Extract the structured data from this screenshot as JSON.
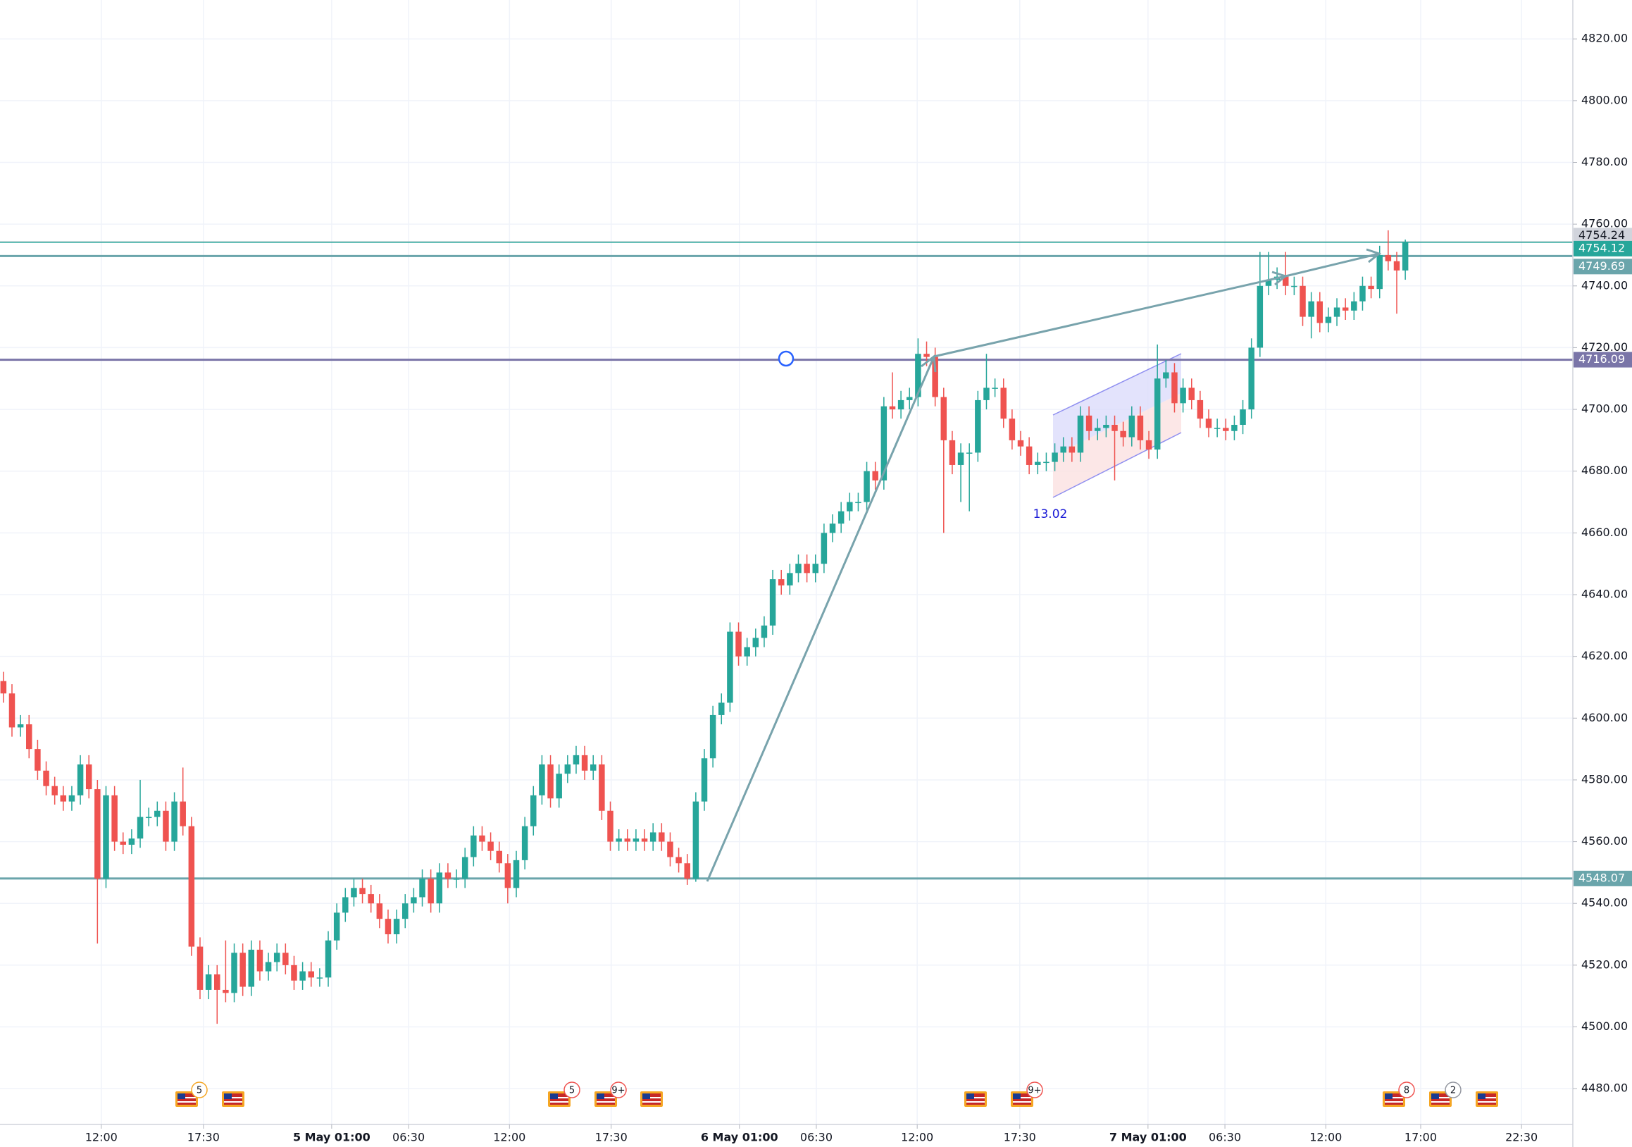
{
  "chart_data": {
    "type": "candlestick",
    "up_color": "#26a69a",
    "down_color": "#ef5350",
    "grid": true,
    "xlim": [
      -0.4,
      183.6
    ],
    "ylim": [
      4468.4,
      4832.6
    ],
    "xticks": [
      {
        "value": 11.45,
        "label": "12:00"
      },
      {
        "value": 23.4,
        "label": "17:30"
      },
      {
        "value": 38.4,
        "label": "5 May 01:00"
      },
      {
        "value": 47.4,
        "label": "06:30"
      },
      {
        "value": 59.2,
        "label": "12:00"
      },
      {
        "value": 71.1,
        "label": "17:30"
      },
      {
        "value": 86.1,
        "label": "6 May 01:00"
      },
      {
        "value": 95.1,
        "label": "06:30"
      },
      {
        "value": 106.9,
        "label": "12:00"
      },
      {
        "value": 118.9,
        "label": "17:30"
      },
      {
        "value": 133.9,
        "label": "7 May 01:00"
      },
      {
        "value": 142.9,
        "label": "06:30"
      },
      {
        "value": 154.7,
        "label": "12:00"
      },
      {
        "value": 165.8,
        "label": "17:00"
      },
      {
        "value": 177.6,
        "label": "22:30"
      }
    ],
    "yticks": [
      {
        "value": 4480,
        "label": "4480.00"
      },
      {
        "value": 4500,
        "label": "4500.00"
      },
      {
        "value": 4520,
        "label": "4520.00"
      },
      {
        "value": 4540,
        "label": "4540.00"
      },
      {
        "value": 4560,
        "label": "4560.00"
      },
      {
        "value": 4580,
        "label": "4580.00"
      },
      {
        "value": 4600,
        "label": "4600.00"
      },
      {
        "value": 4620,
        "label": "4620.00"
      },
      {
        "value": 4640,
        "label": "4640.00"
      },
      {
        "value": 4660,
        "label": "4660.00"
      },
      {
        "value": 4680,
        "label": "4680.00"
      },
      {
        "value": 4700,
        "label": "4700.00"
      },
      {
        "value": 4720,
        "label": "4720.00"
      },
      {
        "value": 4740,
        "label": "4740.00"
      },
      {
        "value": 4760,
        "label": "4760.00"
      },
      {
        "value": 4780,
        "label": "4780.00"
      },
      {
        "value": 4800,
        "label": "4800.00"
      },
      {
        "value": 4820,
        "label": "4820.00"
      }
    ],
    "open": [
      4612,
      4608,
      4597,
      4598,
      4590,
      4583,
      4578,
      4575,
      4573,
      4575,
      4585,
      4577,
      4548,
      4575,
      4560,
      4559,
      4561,
      4568,
      4568,
      4570,
      4560,
      4573,
      4565,
      4526,
      4512,
      4517,
      4512,
      4511,
      4524,
      4513,
      4525,
      4518,
      4521,
      4524,
      4520,
      4515,
      4518,
      4516,
      4516,
      4528,
      4537,
      4542,
      4545,
      4543,
      4540,
      4535,
      4530,
      4535,
      4540,
      4542,
      4548,
      4540,
      4550,
      4548,
      4548,
      4555,
      4562,
      4560,
      4557,
      4553,
      4545,
      4554,
      4565,
      4575,
      4585,
      4574,
      4582,
      4585,
      4588,
      4583,
      4585,
      4570,
      4560,
      4561,
      4560,
      4561,
      4560,
      4563,
      4560,
      4555,
      4553,
      4548,
      4573,
      4587,
      4601,
      4605,
      4628,
      4620,
      4623,
      4626,
      4630,
      4645,
      4643,
      4647,
      4650,
      4647,
      4650,
      4660,
      4663,
      4667,
      4670,
      4670,
      4680,
      4677,
      4701,
      4700,
      4703,
      4704,
      4718,
      4717,
      4704,
      4690,
      4682,
      4686,
      4686,
      4703,
      4707,
      4707,
      4697,
      4690,
      4688,
      4682,
      4683,
      4683,
      4686,
      4688,
      4686,
      4698,
      4693,
      4694,
      4695,
      4693,
      4691,
      4698,
      4690,
      4687,
      4710,
      4712,
      4702,
      4707,
      4703,
      4697,
      4694,
      4694,
      4693,
      4695,
      4700,
      4720,
      4740,
      4742,
      4743,
      4740,
      4740,
      4730,
      4735,
      4728,
      4730,
      4733,
      4732,
      4735,
      4740,
      4739,
      4750,
      4748,
      4745
    ],
    "high": [
      4615,
      4611,
      4601,
      4601,
      4593,
      4586,
      4581,
      4578,
      4578,
      4588,
      4588,
      4580,
      4578,
      4578,
      4563,
      4564,
      4580,
      4571,
      4573,
      4573,
      4576,
      4584,
      4568,
      4529,
      4520,
      4520,
      4528,
      4527,
      4527,
      4528,
      4528,
      4524,
      4527,
      4527,
      4523,
      4521,
      4521,
      4519,
      4531,
      4540,
      4545,
      4548,
      4548,
      4546,
      4543,
      4538,
      4538,
      4543,
      4545,
      4551,
      4551,
      4553,
      4553,
      4551,
      4558,
      4565,
      4565,
      4563,
      4560,
      4556,
      4557,
      4568,
      4578,
      4588,
      4588,
      4585,
      4588,
      4591,
      4591,
      4588,
      4588,
      4573,
      4564,
      4564,
      4564,
      4564,
      4566,
      4566,
      4563,
      4558,
      4556,
      4576,
      4590,
      4604,
      4608,
      4631,
      4631,
      4626,
      4629,
      4633,
      4648,
      4648,
      4650,
      4653,
      4653,
      4653,
      4663,
      4666,
      4670,
      4673,
      4673,
      4683,
      4683,
      4704,
      4712,
      4706,
      4707,
      4723,
      4722,
      4720,
      4707,
      4693,
      4689,
      4689,
      4706,
      4718,
      4710,
      4710,
      4700,
      4693,
      4691,
      4686,
      4686,
      4689,
      4691,
      4691,
      4701,
      4701,
      4697,
      4698,
      4698,
      4696,
      4701,
      4701,
      4693,
      4721,
      4716,
      4715,
      4710,
      4710,
      4706,
      4700,
      4697,
      4697,
      4698,
      4703,
      4723,
      4751,
      4751,
      4746,
      4751,
      4743,
      4743,
      4738,
      4738,
      4733,
      4736,
      4736,
      4738,
      4743,
      4743,
      4753,
      4758,
      4751,
      4755
    ],
    "low": [
      4605,
      4594,
      4594,
      4587,
      4580,
      4575,
      4572,
      4570,
      4570,
      4572,
      4574,
      4527,
      4545,
      4557,
      4556,
      4556,
      4558,
      4565,
      4565,
      4557,
      4557,
      4562,
      4523,
      4509,
      4509,
      4501,
      4508,
      4508,
      4510,
      4510,
      4515,
      4515,
      4518,
      4517,
      4512,
      4512,
      4513,
      4513,
      4513,
      4525,
      4534,
      4539,
      4540,
      4537,
      4532,
      4527,
      4527,
      4532,
      4537,
      4539,
      4537,
      4537,
      4545,
      4545,
      4545,
      4552,
      4557,
      4554,
      4550,
      4540,
      4542,
      4551,
      4562,
      4572,
      4571,
      4571,
      4579,
      4582,
      4580,
      4580,
      4567,
      4557,
      4557,
      4557,
      4557,
      4557,
      4557,
      4557,
      4552,
      4550,
      4546,
      4547,
      4570,
      4584,
      4598,
      4602,
      4617,
      4617,
      4620,
      4623,
      4627,
      4640,
      4640,
      4644,
      4644,
      4644,
      4647,
      4657,
      4660,
      4664,
      4667,
      4667,
      4674,
      4674,
      4697,
      4697,
      4700,
      4701,
      4714,
      4701,
      4660,
      4679,
      4670,
      4667,
      4683,
      4700,
      4704,
      4694,
      4687,
      4685,
      4679,
      4679,
      4680,
      4680,
      4683,
      4683,
      4683,
      4690,
      4690,
      4691,
      4677,
      4688,
      4688,
      4687,
      4684,
      4684,
      4707,
      4699,
      4699,
      4700,
      4694,
      4691,
      4691,
      4690,
      4690,
      4692,
      4697,
      4717,
      4737,
      4739,
      4737,
      4737,
      4727,
      4723,
      4725,
      4725,
      4727,
      4729,
      4729,
      4732,
      4736,
      4736,
      4745,
      4731,
      4742
    ],
    "close": [
      4608,
      4597,
      4598,
      4590,
      4583,
      4578,
      4575,
      4573,
      4575,
      4585,
      4577,
      4548,
      4575,
      4560,
      4559,
      4561,
      4568,
      4568,
      4570,
      4560,
      4573,
      4565,
      4526,
      4512,
      4517,
      4512,
      4511,
      4524,
      4513,
      4525,
      4518,
      4521,
      4524,
      4520,
      4515,
      4518,
      4516,
      4516,
      4528,
      4537,
      4542,
      4545,
      4543,
      4540,
      4535,
      4530,
      4535,
      4540,
      4542,
      4548,
      4540,
      4550,
      4548,
      4548,
      4555,
      4562,
      4560,
      4557,
      4553,
      4545,
      4554,
      4565,
      4575,
      4585,
      4574,
      4582,
      4585,
      4588,
      4583,
      4585,
      4570,
      4560,
      4561,
      4560,
      4561,
      4560,
      4563,
      4560,
      4555,
      4553,
      4548,
      4573,
      4587,
      4601,
      4605,
      4628,
      4620,
      4623,
      4626,
      4630,
      4645,
      4643,
      4647,
      4650,
      4647,
      4650,
      4660,
      4663,
      4667,
      4670,
      4670,
      4680,
      4677,
      4701,
      4700,
      4703,
      4704,
      4718,
      4717,
      4704,
      4690,
      4682,
      4686,
      4686,
      4703,
      4707,
      4707,
      4697,
      4690,
      4688,
      4682,
      4683,
      4683,
      4686,
      4688,
      4686,
      4698,
      4693,
      4694,
      4695,
      4693,
      4691,
      4698,
      4690,
      4687,
      4710,
      4712,
      4702,
      4707,
      4703,
      4697,
      4694,
      4694,
      4693,
      4695,
      4700,
      4720,
      4740,
      4742,
      4743,
      4740,
      4740,
      4730,
      4735,
      4728,
      4730,
      4733,
      4732,
      4735,
      4740,
      4739,
      4750,
      4748,
      4745,
      4754.12
    ],
    "hlines": [
      {
        "value": 4754.24,
        "color": "#b2b5be",
        "label_color": "#d1d4dc",
        "text_color": "#131722"
      },
      {
        "value": 4754.12,
        "color": "#26a69a",
        "label_color": "#26a69a",
        "text_color": "#ffffff"
      },
      {
        "value": 4749.69,
        "color": "#6aa5ab",
        "label_color": "#6aa5ab",
        "text_color": "#ffffff"
      },
      {
        "value": 4716.09,
        "color": "#7a75a8",
        "label_color": "#7a75a8",
        "text_color": "#ffffff"
      },
      {
        "value": 4548.07,
        "color": "#6aa5ab",
        "label_color": "#6aa5ab",
        "text_color": "#ffffff"
      }
    ],
    "annotation": "13.02",
    "event_badges": [
      5,
      5,
      "9+",
      "9+",
      8,
      2
    ]
  }
}
